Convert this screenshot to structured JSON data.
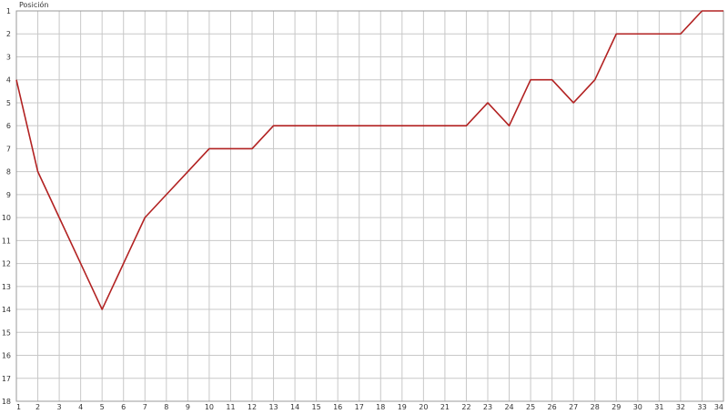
{
  "chart_data": {
    "type": "line",
    "title": "",
    "xlabel": "",
    "ylabel": "Posición",
    "xlim": [
      1,
      34
    ],
    "ylim": [
      18,
      1
    ],
    "y_inverted": true,
    "grid": true,
    "legend": "none",
    "x_ticks": [
      1,
      2,
      3,
      4,
      5,
      6,
      7,
      8,
      9,
      10,
      11,
      12,
      13,
      14,
      15,
      16,
      17,
      18,
      19,
      20,
      21,
      22,
      23,
      24,
      25,
      26,
      27,
      28,
      29,
      30,
      31,
      32,
      33,
      34
    ],
    "y_ticks": [
      1,
      2,
      3,
      4,
      5,
      6,
      7,
      8,
      9,
      10,
      11,
      12,
      13,
      14,
      15,
      16,
      17,
      18
    ],
    "series": [
      {
        "color": "#b22222",
        "x": [
          1,
          2,
          3,
          4,
          5,
          6,
          7,
          8,
          9,
          10,
          11,
          12,
          13,
          14,
          15,
          16,
          17,
          18,
          19,
          20,
          21,
          22,
          23,
          24,
          25,
          26,
          27,
          28,
          29,
          30,
          31,
          32,
          33,
          34
        ],
        "values": [
          4,
          8,
          10,
          12,
          14,
          12,
          10,
          9,
          8,
          7,
          7,
          7,
          6,
          6,
          6,
          6,
          6,
          6,
          6,
          6,
          6,
          6,
          5,
          6,
          4,
          4,
          5,
          4,
          2,
          2,
          2,
          2,
          1,
          1
        ]
      }
    ],
    "colors": {
      "grid": "#c8c8c8",
      "axis": "#999999",
      "line": "#b22222"
    }
  }
}
